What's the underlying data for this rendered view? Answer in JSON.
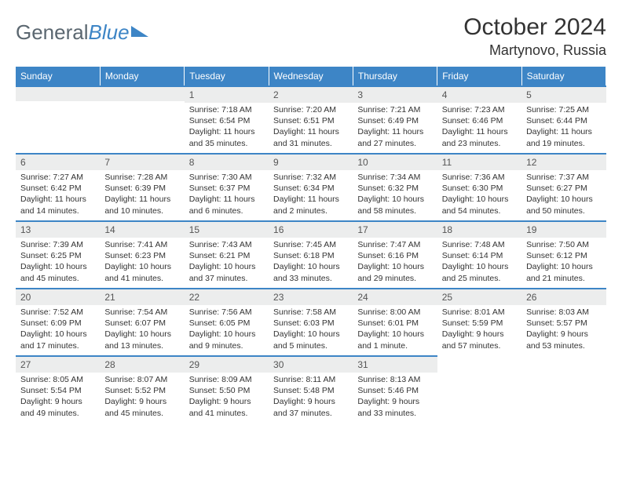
{
  "brand": {
    "part1": "General",
    "part2": "Blue"
  },
  "title": "October 2024",
  "location": "Martynovo, Russia",
  "theme": {
    "accent": "#3d85c6",
    "header_text": "#ffffff",
    "daynum_bg": "#eceded"
  },
  "weekdays": [
    "Sunday",
    "Monday",
    "Tuesday",
    "Wednesday",
    "Thursday",
    "Friday",
    "Saturday"
  ],
  "weeks": [
    [
      null,
      null,
      {
        "n": "1",
        "sr": "7:18 AM",
        "ss": "6:54 PM",
        "dl": "11 hours and 35 minutes."
      },
      {
        "n": "2",
        "sr": "7:20 AM",
        "ss": "6:51 PM",
        "dl": "11 hours and 31 minutes."
      },
      {
        "n": "3",
        "sr": "7:21 AM",
        "ss": "6:49 PM",
        "dl": "11 hours and 27 minutes."
      },
      {
        "n": "4",
        "sr": "7:23 AM",
        "ss": "6:46 PM",
        "dl": "11 hours and 23 minutes."
      },
      {
        "n": "5",
        "sr": "7:25 AM",
        "ss": "6:44 PM",
        "dl": "11 hours and 19 minutes."
      }
    ],
    [
      {
        "n": "6",
        "sr": "7:27 AM",
        "ss": "6:42 PM",
        "dl": "11 hours and 14 minutes."
      },
      {
        "n": "7",
        "sr": "7:28 AM",
        "ss": "6:39 PM",
        "dl": "11 hours and 10 minutes."
      },
      {
        "n": "8",
        "sr": "7:30 AM",
        "ss": "6:37 PM",
        "dl": "11 hours and 6 minutes."
      },
      {
        "n": "9",
        "sr": "7:32 AM",
        "ss": "6:34 PM",
        "dl": "11 hours and 2 minutes."
      },
      {
        "n": "10",
        "sr": "7:34 AM",
        "ss": "6:32 PM",
        "dl": "10 hours and 58 minutes."
      },
      {
        "n": "11",
        "sr": "7:36 AM",
        "ss": "6:30 PM",
        "dl": "10 hours and 54 minutes."
      },
      {
        "n": "12",
        "sr": "7:37 AM",
        "ss": "6:27 PM",
        "dl": "10 hours and 50 minutes."
      }
    ],
    [
      {
        "n": "13",
        "sr": "7:39 AM",
        "ss": "6:25 PM",
        "dl": "10 hours and 45 minutes."
      },
      {
        "n": "14",
        "sr": "7:41 AM",
        "ss": "6:23 PM",
        "dl": "10 hours and 41 minutes."
      },
      {
        "n": "15",
        "sr": "7:43 AM",
        "ss": "6:21 PM",
        "dl": "10 hours and 37 minutes."
      },
      {
        "n": "16",
        "sr": "7:45 AM",
        "ss": "6:18 PM",
        "dl": "10 hours and 33 minutes."
      },
      {
        "n": "17",
        "sr": "7:47 AM",
        "ss": "6:16 PM",
        "dl": "10 hours and 29 minutes."
      },
      {
        "n": "18",
        "sr": "7:48 AM",
        "ss": "6:14 PM",
        "dl": "10 hours and 25 minutes."
      },
      {
        "n": "19",
        "sr": "7:50 AM",
        "ss": "6:12 PM",
        "dl": "10 hours and 21 minutes."
      }
    ],
    [
      {
        "n": "20",
        "sr": "7:52 AM",
        "ss": "6:09 PM",
        "dl": "10 hours and 17 minutes."
      },
      {
        "n": "21",
        "sr": "7:54 AM",
        "ss": "6:07 PM",
        "dl": "10 hours and 13 minutes."
      },
      {
        "n": "22",
        "sr": "7:56 AM",
        "ss": "6:05 PM",
        "dl": "10 hours and 9 minutes."
      },
      {
        "n": "23",
        "sr": "7:58 AM",
        "ss": "6:03 PM",
        "dl": "10 hours and 5 minutes."
      },
      {
        "n": "24",
        "sr": "8:00 AM",
        "ss": "6:01 PM",
        "dl": "10 hours and 1 minute."
      },
      {
        "n": "25",
        "sr": "8:01 AM",
        "ss": "5:59 PM",
        "dl": "9 hours and 57 minutes."
      },
      {
        "n": "26",
        "sr": "8:03 AM",
        "ss": "5:57 PM",
        "dl": "9 hours and 53 minutes."
      }
    ],
    [
      {
        "n": "27",
        "sr": "8:05 AM",
        "ss": "5:54 PM",
        "dl": "9 hours and 49 minutes."
      },
      {
        "n": "28",
        "sr": "8:07 AM",
        "ss": "5:52 PM",
        "dl": "9 hours and 45 minutes."
      },
      {
        "n": "29",
        "sr": "8:09 AM",
        "ss": "5:50 PM",
        "dl": "9 hours and 41 minutes."
      },
      {
        "n": "30",
        "sr": "8:11 AM",
        "ss": "5:48 PM",
        "dl": "9 hours and 37 minutes."
      },
      {
        "n": "31",
        "sr": "8:13 AM",
        "ss": "5:46 PM",
        "dl": "9 hours and 33 minutes."
      },
      null,
      null
    ]
  ],
  "labels": {
    "sunrise": "Sunrise:",
    "sunset": "Sunset:",
    "daylight": "Daylight:"
  }
}
